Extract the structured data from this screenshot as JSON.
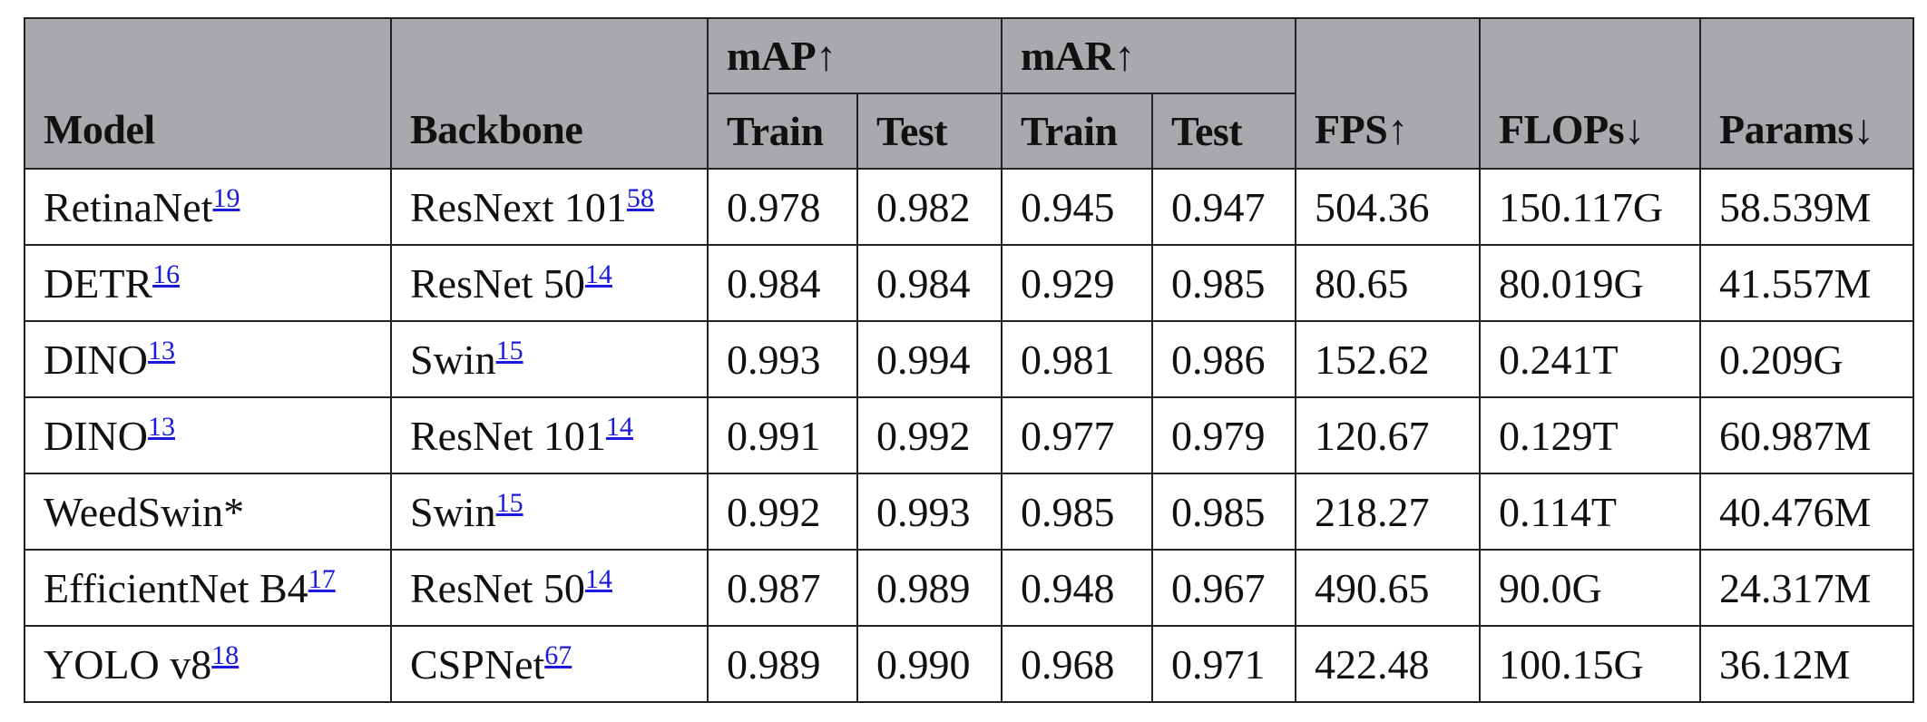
{
  "header": {
    "model": "Model",
    "backbone": "Backbone",
    "map": "mAP↑",
    "mar": "mAR↑",
    "fps": "FPS↑",
    "flops": "FLOPs↓",
    "params": "Params↓",
    "map_train": "Train",
    "map_test": "Test",
    "mar_train": "Train",
    "mar_test": "Test"
  },
  "rows": [
    {
      "model": "RetinaNet",
      "model_ref": "19",
      "backbone": "ResNext 101",
      "backbone_ref": "58",
      "map_train": "0.978",
      "map_test": "0.982",
      "mar_train": "0.945",
      "mar_test": "0.947",
      "fps": "504.36",
      "flops": "150.117G",
      "params": "58.539M"
    },
    {
      "model": "DETR",
      "model_ref": "16",
      "backbone": "ResNet 50",
      "backbone_ref": "14",
      "map_train": "0.984",
      "map_test": "0.984",
      "mar_train": "0.929",
      "mar_test": "0.985",
      "fps": "80.65",
      "flops": "80.019G",
      "params": "41.557M"
    },
    {
      "model": "DINO",
      "model_ref": "13",
      "backbone": "Swin",
      "backbone_ref": "15",
      "map_train": "0.993",
      "map_test": "0.994",
      "mar_train": "0.981",
      "mar_test": "0.986",
      "fps": "152.62",
      "flops": "0.241T",
      "params": "0.209G"
    },
    {
      "model": "DINO",
      "model_ref": "13",
      "backbone": "ResNet 101",
      "backbone_ref": "14",
      "map_train": "0.991",
      "map_test": "0.992",
      "mar_train": "0.977",
      "mar_test": "0.979",
      "fps": "120.67",
      "flops": "0.129T",
      "params": "60.987M"
    },
    {
      "model": "WeedSwin*",
      "model_ref": "",
      "backbone": "Swin",
      "backbone_ref": "15",
      "map_train": "0.992",
      "map_test": "0.993",
      "mar_train": "0.985",
      "mar_test": "0.985",
      "fps": "218.27",
      "flops": "0.114T",
      "params": "40.476M"
    },
    {
      "model": "EfficientNet B4",
      "model_ref": "17",
      "backbone": "ResNet 50",
      "backbone_ref": "14",
      "map_train": "0.987",
      "map_test": "0.989",
      "mar_train": "0.948",
      "mar_test": "0.967",
      "fps": "490.65",
      "flops": "90.0G",
      "params": "24.317M"
    },
    {
      "model": "YOLO v8",
      "model_ref": "18",
      "backbone": "CSPNet",
      "backbone_ref": "67",
      "map_train": "0.989",
      "map_test": "0.990",
      "mar_train": "0.968",
      "mar_test": "0.971",
      "fps": "422.48",
      "flops": "100.15G",
      "params": "36.12M"
    }
  ]
}
